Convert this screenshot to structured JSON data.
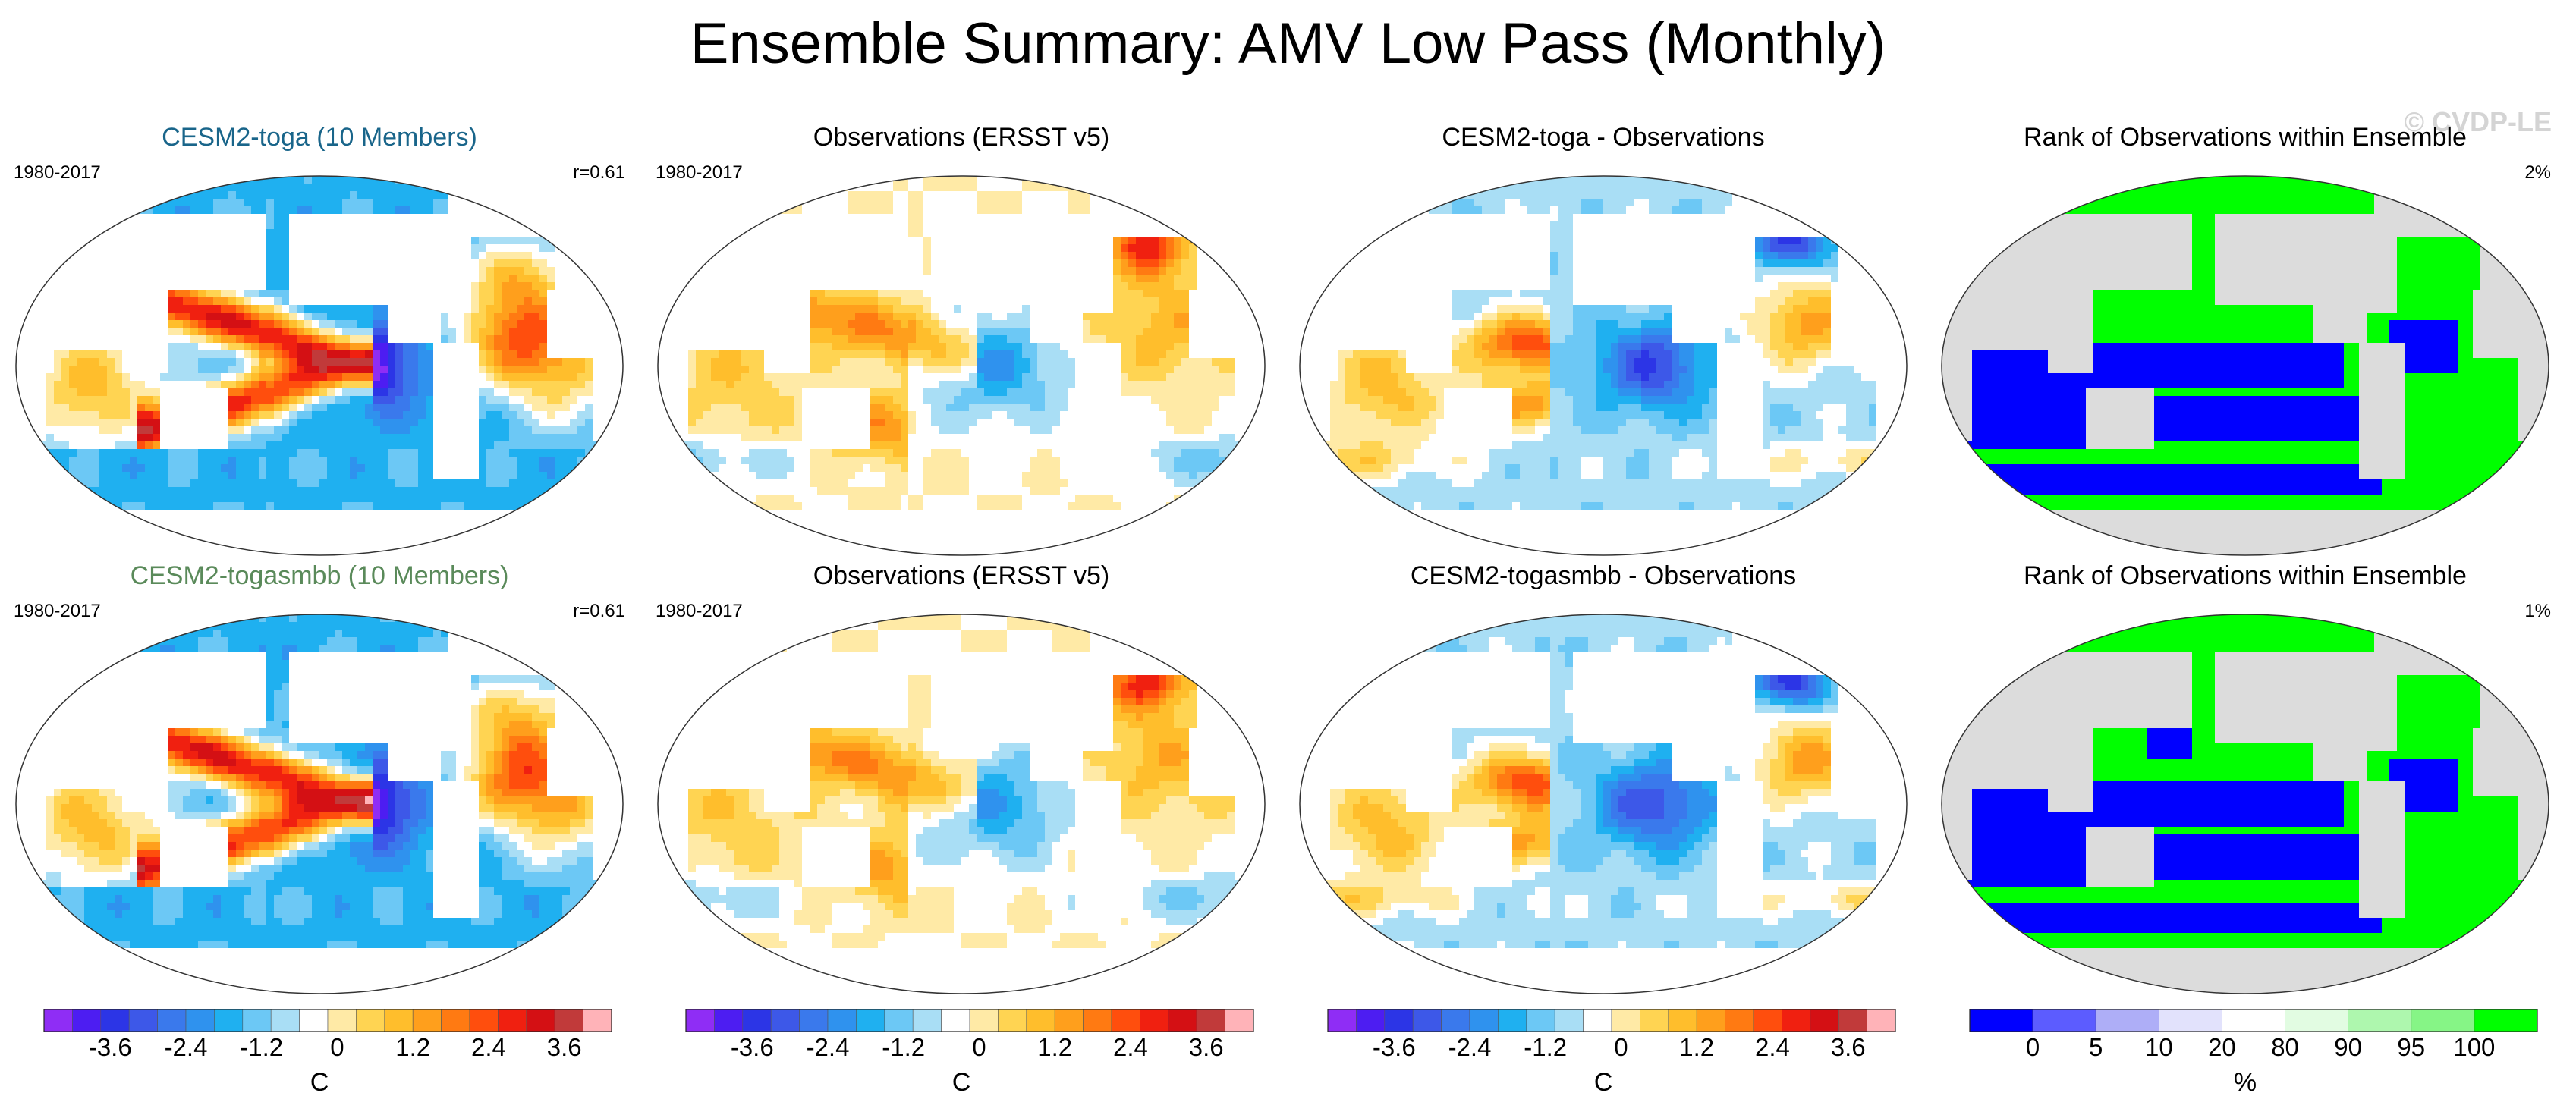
{
  "title": "Ensemble Summary: AMV Low Pass (Monthly)",
  "watermark": "© CVDP-LE",
  "colors": {
    "title_row1": "#19658a",
    "title_row2": "#5a8a5a",
    "land": "#ffffff",
    "rank_land": "#dcdcdc",
    "rank_low": "#0000ff",
    "rank_high": "#00ff00"
  },
  "rows": [
    {
      "panels": [
        {
          "title": "CESM2-toga (10 Members)",
          "left": "1980-2017",
          "right": "r=0.61",
          "kind": "model"
        },
        {
          "title": "Observations (ERSST v5)",
          "left": "1980-2017",
          "right": "",
          "kind": "obs"
        },
        {
          "title": "CESM2-toga - Observations",
          "left": "",
          "right": "",
          "kind": "diff"
        },
        {
          "title": "Rank of Observations within Ensemble",
          "left": "",
          "right": "2%",
          "kind": "rank"
        }
      ]
    },
    {
      "panels": [
        {
          "title": "CESM2-togasmbb (10 Members)",
          "left": "1980-2017",
          "right": "r=0.61",
          "kind": "model"
        },
        {
          "title": "Observations (ERSST v5)",
          "left": "1980-2017",
          "right": "",
          "kind": "obs"
        },
        {
          "title": "CESM2-togasmbb - Observations",
          "left": "",
          "right": "",
          "kind": "diff"
        },
        {
          "title": "Rank of Observations within Ensemble",
          "left": "",
          "right": "1%",
          "kind": "rank"
        }
      ]
    }
  ],
  "colorbars": {
    "temperature": {
      "unit": "C",
      "ticks": [
        "-3.6",
        "-2.4",
        "-1.2",
        "0",
        "1.2",
        "2.4",
        "3.6"
      ],
      "colors": [
        "#8f2df5",
        "#4d1df2",
        "#2c35e6",
        "#3d58e8",
        "#3a79ec",
        "#2f92ee",
        "#1fb0f0",
        "#6cc8f5",
        "#a9def5",
        "#ffffff",
        "#ffeaa6",
        "#ffd452",
        "#ffbe2c",
        "#ff9f1c",
        "#ff7a12",
        "#ff4e0d",
        "#f02010",
        "#d41014",
        "#c13a3a",
        "#ffb3b8"
      ]
    },
    "rank": {
      "unit": "%",
      "ticks": [
        "0",
        "5",
        "10",
        "20",
        "80",
        "90",
        "95",
        "100"
      ],
      "colors": [
        "#0000ff",
        "#5c5cff",
        "#aeaef7",
        "#e2e2fc",
        "#ffffff",
        "#e2fce2",
        "#aef7ae",
        "#86f586",
        "#00ff00"
      ]
    }
  }
}
